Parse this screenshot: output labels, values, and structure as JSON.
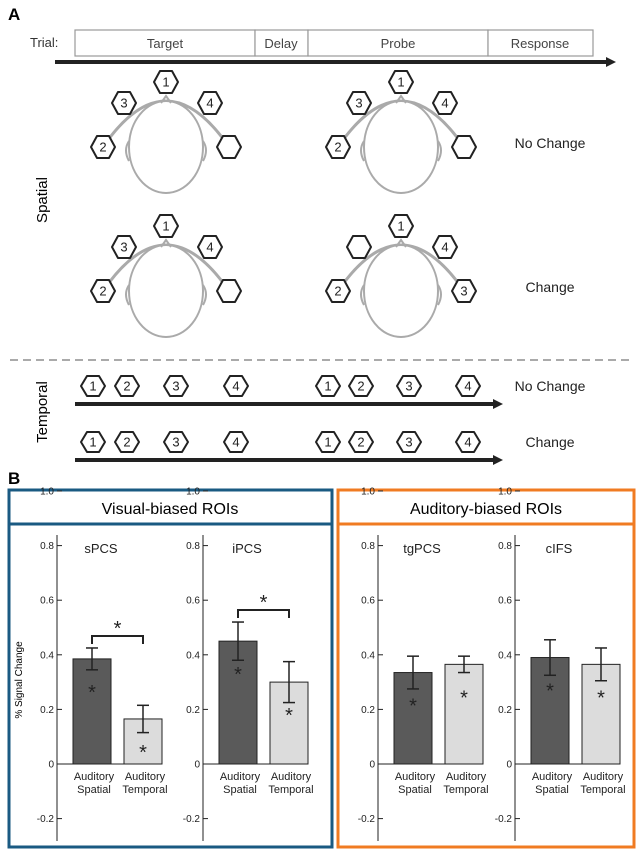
{
  "panel_a": {
    "label": "A",
    "trial_label": "Trial:",
    "phases": [
      "Target",
      "Delay",
      "Probe",
      "Response"
    ],
    "row_labels": {
      "spatial": "Spatial",
      "temporal": "Temporal"
    },
    "spatial_rows": [
      {
        "label": "No Change",
        "target": [
          "1",
          "3",
          "4",
          "2",
          ""
        ],
        "probe": [
          "1",
          "3",
          "4",
          "2",
          ""
        ]
      },
      {
        "label": "Change",
        "target": [
          "1",
          "3",
          "4",
          "2",
          ""
        ],
        "probe": [
          "1",
          "",
          "4",
          "2",
          "3"
        ]
      }
    ],
    "temporal_rows": [
      {
        "label": "No Change",
        "stim": [
          "1",
          "2",
          "3",
          "4",
          "1",
          "2",
          "3",
          "4"
        ]
      },
      {
        "label": "Change",
        "stim": [
          "1",
          "2",
          "3",
          "4",
          "1",
          "2",
          "3",
          "4"
        ]
      }
    ]
  },
  "panel_b": {
    "label": "B",
    "groups": [
      {
        "title": "Visual-biased ROIs",
        "color": "#1a5a82"
      },
      {
        "title": "Auditory-biased ROIs",
        "color": "#f07b22"
      }
    ],
    "ylabel": "% Signal Change",
    "yticks": [
      "1.0",
      "0.8",
      "0.6",
      "0.4",
      "0.2",
      "0",
      "-0.2"
    ],
    "condition_labels": [
      [
        "Auditory",
        "Spatial"
      ],
      [
        "Auditory",
        "Temporal"
      ]
    ],
    "significance_mark": "*",
    "bar_colors": {
      "spatial": "#5a5a5a",
      "temporal": "#dcdcdc"
    }
  },
  "chart_data": [
    {
      "type": "bar",
      "title": "sPCS",
      "group": "Visual-biased ROIs",
      "categories": [
        "Auditory Spatial",
        "Auditory Temporal"
      ],
      "values": [
        0.385,
        0.165
      ],
      "errors": [
        0.04,
        0.05
      ],
      "ylim": [
        -0.2,
        1.1
      ],
      "ylabel": "% Signal Change",
      "bar_significant": [
        true,
        true
      ],
      "pairwise_significant": true
    },
    {
      "type": "bar",
      "title": "iPCS",
      "group": "Visual-biased ROIs",
      "categories": [
        "Auditory Spatial",
        "Auditory Temporal"
      ],
      "values": [
        0.45,
        0.3
      ],
      "errors": [
        0.07,
        0.075
      ],
      "ylim": [
        -0.2,
        1.1
      ],
      "ylabel": "",
      "bar_significant": [
        true,
        true
      ],
      "pairwise_significant": true
    },
    {
      "type": "bar",
      "title": "tgPCS",
      "group": "Auditory-biased ROIs",
      "categories": [
        "Auditory Spatial",
        "Auditory Temporal"
      ],
      "values": [
        0.335,
        0.365
      ],
      "errors": [
        0.06,
        0.03
      ],
      "ylim": [
        -0.2,
        1.1
      ],
      "ylabel": "",
      "bar_significant": [
        true,
        true
      ],
      "pairwise_significant": false
    },
    {
      "type": "bar",
      "title": "cIFS",
      "group": "Auditory-biased ROIs",
      "categories": [
        "Auditory Spatial",
        "Auditory Temporal"
      ],
      "values": [
        0.39,
        0.365
      ],
      "errors": [
        0.065,
        0.06
      ],
      "ylim": [
        -0.2,
        1.1
      ],
      "ylabel": "",
      "bar_significant": [
        true,
        true
      ],
      "pairwise_significant": false
    }
  ]
}
